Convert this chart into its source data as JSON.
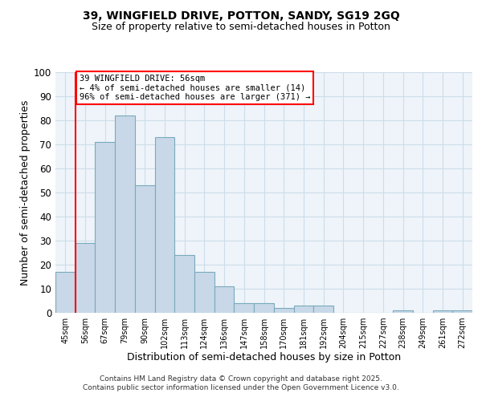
{
  "title_line1": "39, WINGFIELD DRIVE, POTTON, SANDY, SG19 2GQ",
  "title_line2": "Size of property relative to semi-detached houses in Potton",
  "xlabel": "Distribution of semi-detached houses by size in Potton",
  "ylabel": "Number of semi-detached properties",
  "categories": [
    "45sqm",
    "56sqm",
    "67sqm",
    "79sqm",
    "90sqm",
    "102sqm",
    "113sqm",
    "124sqm",
    "136sqm",
    "147sqm",
    "158sqm",
    "170sqm",
    "181sqm",
    "192sqm",
    "204sqm",
    "215sqm",
    "227sqm",
    "238sqm",
    "249sqm",
    "261sqm",
    "272sqm"
  ],
  "values": [
    17,
    29,
    71,
    82,
    53,
    73,
    24,
    17,
    11,
    4,
    4,
    2,
    3,
    3,
    0,
    0,
    0,
    1,
    0,
    1,
    1
  ],
  "bar_color": "#c8d8e8",
  "bar_edge_color": "#7aaabb",
  "grid_color": "#ccdde8",
  "bg_color": "#eef4fa",
  "red_line_index": 1,
  "annotation_text": "39 WINGFIELD DRIVE: 56sqm\n← 4% of semi-detached houses are smaller (14)\n96% of semi-detached houses are larger (371) →",
  "annotation_box_color": "white",
  "annotation_border_color": "red",
  "footer_line1": "Contains HM Land Registry data © Crown copyright and database right 2025.",
  "footer_line2": "Contains public sector information licensed under the Open Government Licence v3.0.",
  "ylim": [
    0,
    100
  ],
  "yticks": [
    0,
    10,
    20,
    30,
    40,
    50,
    60,
    70,
    80,
    90,
    100
  ]
}
